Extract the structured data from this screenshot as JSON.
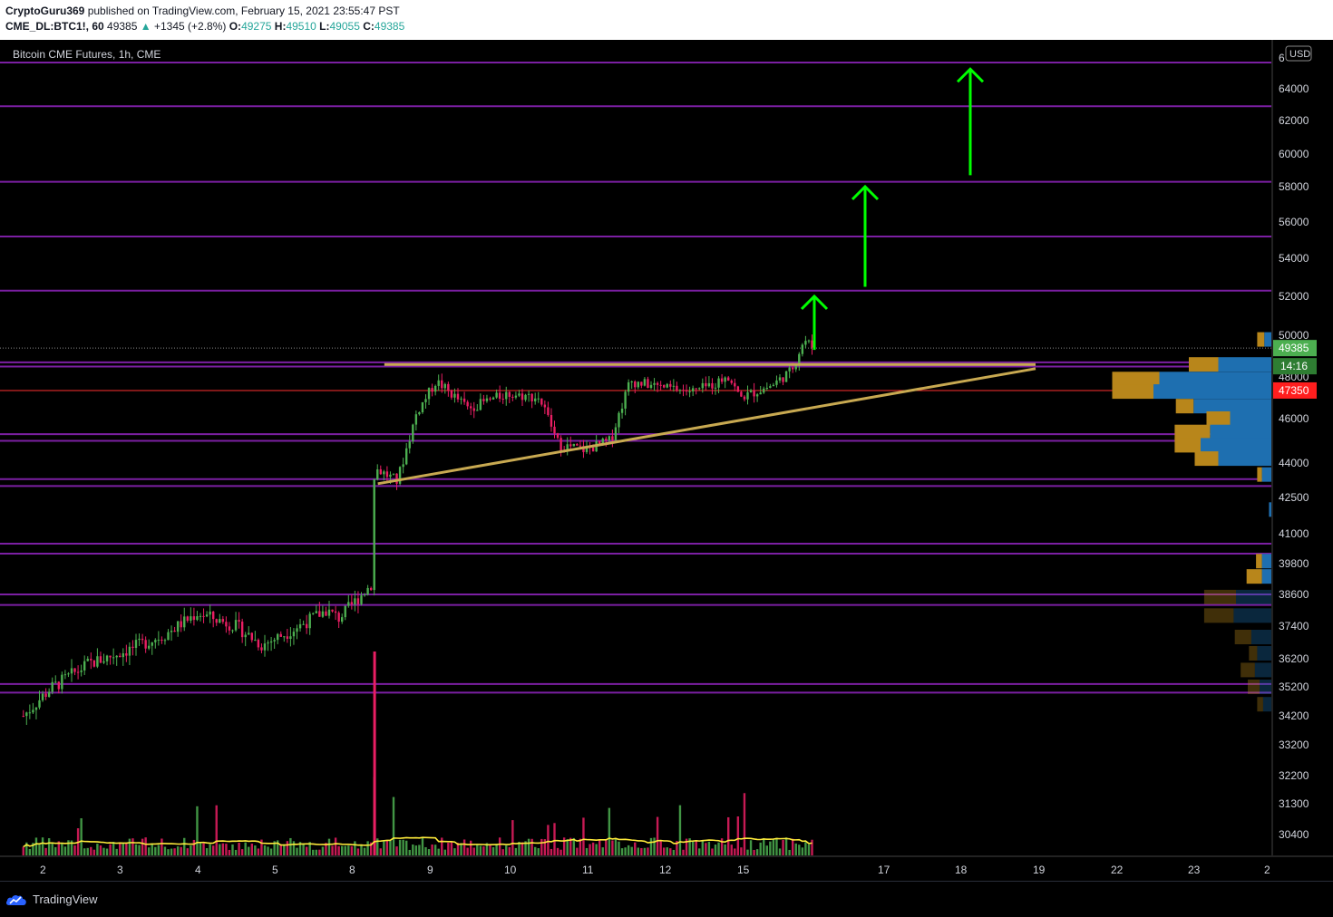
{
  "header": {
    "author": "CryptoGuru369",
    "published_text": "published on TradingView.com, February 15, 2021 23:55:47 PST",
    "symbol": "CME_DL:BTC1!, 60",
    "last": "49385",
    "change": "+1345 (+2.8%)",
    "o_label": "O:",
    "o_value": "49275",
    "h_label": "H:",
    "h_value": "49510",
    "l_label": "L:",
    "l_value": "49055",
    "c_label": "C:",
    "c_value": "49385"
  },
  "footer": {
    "logo_text": "TradingView"
  },
  "colors": {
    "background": "#000000",
    "level_line": "#7b1fa2",
    "trendline": "#c8a951",
    "arrow": "#00ff00",
    "candle_up": "#4caf50",
    "candle_down": "#e91e63",
    "volume_ma": "#ffeb3b",
    "profile_up": "#b8861b",
    "profile_down": "#1e6fb0",
    "last_price_badge": "#4caf50",
    "line_47350_badge": "#ff1e1e"
  },
  "chart_data": {
    "type": "candlestick",
    "title": "Bitcoin CME Futures, 1h, CME",
    "currency": "USD",
    "y_axis_labels": [
      "64000",
      "62000",
      "60000",
      "58000",
      "56000",
      "54000",
      "52000",
      "50000",
      "48000",
      "46000",
      "44000",
      "42500",
      "41000",
      "39800",
      "38600",
      "37400",
      "36200",
      "35200",
      "34200",
      "33200",
      "32200",
      "31300",
      "30400"
    ],
    "y_axis_partial_top_label": "6",
    "x_axis_labels": [
      "2",
      "3",
      "4",
      "5",
      "8",
      "9",
      "10",
      "11",
      "12",
      "15",
      "17",
      "18",
      "19",
      "22",
      "23",
      "2"
    ],
    "last_price": "49385",
    "countdown": "14:16",
    "marked_price": "47350",
    "horizontal_levels": [
      65600,
      62900,
      58300,
      55200,
      52300,
      48700,
      48500,
      45300,
      45000,
      43300,
      43000,
      40600,
      40200,
      38600,
      38200,
      35300,
      35000
    ],
    "trendlines": [
      {
        "name": "resistance",
        "from": {
          "x": "2021-02-08T10:00",
          "y": 48600
        },
        "to": {
          "x": "2021-02-19T00:00",
          "y": 48600
        }
      },
      {
        "name": "support",
        "from": {
          "x": "2021-02-08T08:00",
          "y": 43100
        },
        "to": {
          "x": "2021-02-19T00:00",
          "y": 48400
        }
      }
    ],
    "arrows": [
      {
        "name": "target-1",
        "from_price": 49300,
        "to_price": 52000
      },
      {
        "name": "target-2",
        "from_price": 52500,
        "to_price": 58000
      },
      {
        "name": "target-3",
        "from_price": 58700,
        "to_price": 65200
      }
    ],
    "price_path": [
      {
        "x": "2021-02-01T18:00",
        "y": 34200
      },
      {
        "x": "2021-02-02T02:00",
        "y": 35100
      },
      {
        "x": "2021-02-02T14:00",
        "y": 36000
      },
      {
        "x": "2021-02-03T02:00",
        "y": 36500
      },
      {
        "x": "2021-02-03T14:00",
        "y": 37100
      },
      {
        "x": "2021-02-04T00:00",
        "y": 37900
      },
      {
        "x": "2021-02-04T12:00",
        "y": 37400
      },
      {
        "x": "2021-02-04T20:00",
        "y": 36700
      },
      {
        "x": "2021-02-05T06:00",
        "y": 37300
      },
      {
        "x": "2021-02-05T16:00",
        "y": 38000
      },
      {
        "x": "2021-02-07T20:00",
        "y": 37700
      },
      {
        "x": "2021-02-08T00:00",
        "y": 38200
      },
      {
        "x": "2021-02-08T06:00",
        "y": 39000
      },
      {
        "x": "2021-02-08T07:00",
        "y": 43800
      },
      {
        "x": "2021-02-08T14:00",
        "y": 43200
      },
      {
        "x": "2021-02-08T20:00",
        "y": 46300
      },
      {
        "x": "2021-02-09T02:00",
        "y": 47800
      },
      {
        "x": "2021-02-09T12:00",
        "y": 46500
      },
      {
        "x": "2021-02-10T00:00",
        "y": 47200
      },
      {
        "x": "2021-02-10T10:00",
        "y": 47000
      },
      {
        "x": "2021-02-10T16:00",
        "y": 44800
      },
      {
        "x": "2021-02-11T00:00",
        "y": 44600
      },
      {
        "x": "2021-02-11T08:00",
        "y": 45000
      },
      {
        "x": "2021-02-11T14:00",
        "y": 47800
      },
      {
        "x": "2021-02-12T00:00",
        "y": 47500
      },
      {
        "x": "2021-02-12T10:00",
        "y": 47300
      },
      {
        "x": "2021-02-12T18:00",
        "y": 47800
      },
      {
        "x": "2021-02-14T20:00",
        "y": 48200
      },
      {
        "x": "2021-02-15T00:00",
        "y": 47000
      },
      {
        "x": "2021-02-15T10:00",
        "y": 47600
      },
      {
        "x": "2021-02-15T16:00",
        "y": 48300
      },
      {
        "x": "2021-02-15T20:00",
        "y": 49800
      },
      {
        "x": "2021-02-15T23:00",
        "y": 49385
      }
    ],
    "volume_spike": {
      "x": "2021-02-08T07:00"
    },
    "volume_profile": [
      {
        "price": 49800,
        "up": 0.06,
        "down": 0.06
      },
      {
        "price": 48600,
        "up": 0.25,
        "down": 0.45
      },
      {
        "price": 47900,
        "up": 0.4,
        "down": 0.95
      },
      {
        "price": 47300,
        "up": 0.35,
        "down": 1.0
      },
      {
        "price": 46600,
        "up": 0.15,
        "down": 0.66
      },
      {
        "price": 46000,
        "up": 0.2,
        "down": 0.35
      },
      {
        "price": 45400,
        "up": 0.3,
        "down": 0.52
      },
      {
        "price": 44800,
        "up": 0.22,
        "down": 0.6
      },
      {
        "price": 44200,
        "up": 0.2,
        "down": 0.45
      },
      {
        "price": 43500,
        "up": 0.04,
        "down": 0.08
      },
      {
        "price": 42000,
        "up": 0.0,
        "down": 0.02
      },
      {
        "price": 39900,
        "up": 0.05,
        "down": 0.08
      },
      {
        "price": 39300,
        "up": 0.13,
        "down": 0.08
      },
      {
        "price": 38500,
        "up": 0.27,
        "down": 0.3
      },
      {
        "price": 37800,
        "up": 0.25,
        "down": 0.32
      },
      {
        "price": 37000,
        "up": 0.14,
        "down": 0.17
      },
      {
        "price": 36400,
        "up": 0.07,
        "down": 0.12
      },
      {
        "price": 35800,
        "up": 0.12,
        "down": 0.14
      },
      {
        "price": 35200,
        "up": 0.1,
        "down": 0.1
      },
      {
        "price": 34600,
        "up": 0.05,
        "down": 0.07
      }
    ]
  }
}
